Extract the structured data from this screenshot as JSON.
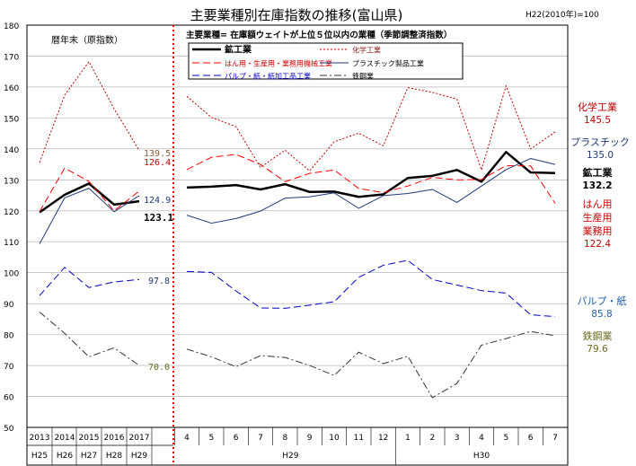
{
  "chart_data": {
    "type": "line",
    "title": "主要業種別在庫指数の推移(富山県)",
    "base_note": "H22(2010年)=100",
    "subtitle": "主要業種= 在庫額ウェイトが上位５位以内の業種（季節調整済指数）",
    "annual_label": "暦年末（原指数）",
    "ylim": [
      50,
      180
    ],
    "yticks": [
      50,
      60,
      70,
      80,
      90,
      100,
      110,
      120,
      130,
      140,
      150,
      160,
      170,
      180
    ],
    "annual_x": [
      "2013",
      "2014",
      "2015",
      "2016",
      "2017"
    ],
    "annual_era": [
      "H25",
      "H26",
      "H27",
      "H28",
      "H29"
    ],
    "monthly_x": [
      "4",
      "5",
      "6",
      "7",
      "8",
      "9",
      "10",
      "11",
      "12",
      "1",
      "2",
      "3",
      "4",
      "5",
      "6",
      "7"
    ],
    "monthly_era": [
      "H29",
      "H30"
    ],
    "series": [
      {
        "name": "鉱工業",
        "color": "#000000",
        "dash": "solid",
        "width": 2.5,
        "annual": [
          119.5,
          125.2,
          128.8,
          122.0,
          123.1
        ],
        "monthly": [
          127.5,
          127.8,
          128.3,
          126.9,
          128.6,
          126.1,
          126.2,
          124.5,
          125.3,
          130.6,
          131.3,
          133.2,
          129.4,
          139.0,
          132.4,
          132.2
        ],
        "label_lines": [
          "鉱工業"
        ],
        "label_value": "132.2",
        "label_color": "#000000",
        "annual_end_label": "123.1"
      },
      {
        "name": "化学工業",
        "color": "#c00000",
        "dash": "dot",
        "width": 1,
        "annual": [
          135.6,
          157.4,
          168.2,
          153.0,
          139.5
        ],
        "monthly": [
          157.0,
          150.2,
          147.2,
          134.0,
          139.6,
          132.9,
          142.3,
          145.1,
          141.0,
          159.8,
          158.3,
          156.1,
          133.2,
          160.4,
          140.0,
          145.5
        ],
        "label_lines": [
          "化学工業"
        ],
        "label_value": "145.5",
        "label_color": "#c00000",
        "annual_end_label": "139.5"
      },
      {
        "name": "はん用・生産用・業務用機械工業",
        "color": "#ff0000",
        "dash": "dash",
        "width": 1,
        "annual": [
          119.7,
          133.8,
          129.5,
          120.0,
          126.4
        ],
        "monthly": [
          133.3,
          137.3,
          138.2,
          135.0,
          129.4,
          132.1,
          133.2,
          127.2,
          125.9,
          128.0,
          130.8,
          130.0,
          130.1,
          134.6,
          134.5,
          122.4
        ],
        "label_lines": [
          "はん用",
          "生産用",
          "業務用"
        ],
        "label_value": "122.4",
        "label_color": "#cc0000",
        "annual_end_label": "126.4"
      },
      {
        "name": "プラスチック製品工業",
        "color": "#1f3a78",
        "dash": "solid",
        "width": 1,
        "annual": [
          109.3,
          124.2,
          127.3,
          119.7,
          124.9
        ],
        "monthly": [
          118.6,
          116.0,
          117.5,
          119.9,
          124.1,
          124.5,
          125.8,
          120.8,
          124.9,
          125.6,
          126.9,
          122.7,
          128.0,
          133.3,
          136.9,
          135.0
        ],
        "label_lines": [
          "プラスチック"
        ],
        "label_value": "135.0",
        "label_color": "#1f3a78",
        "annual_end_label": "124.9"
      },
      {
        "name": "パルプ・紙・紙加工品工業",
        "color": "#0000cc",
        "dash": "dash",
        "width": 1,
        "annual": [
          92.6,
          101.7,
          95.2,
          97.0,
          97.8
        ],
        "monthly": [
          100.4,
          100.1,
          94.1,
          88.6,
          88.5,
          89.5,
          90.6,
          98.5,
          102.4,
          104.0,
          97.8,
          96.0,
          94.2,
          93.4,
          86.4,
          85.8
        ],
        "label_lines": [
          "パルプ・紙"
        ],
        "label_value": "85.8",
        "label_color": "#1f5fa8",
        "annual_end_label": "97.8"
      },
      {
        "name": "鉄鋼業",
        "color": "#333333",
        "dash": "dashdot",
        "width": 1,
        "annual": [
          87.3,
          80.4,
          72.8,
          75.7,
          70.0
        ],
        "monthly": [
          75.3,
          72.8,
          69.6,
          73.2,
          72.6,
          70.0,
          66.8,
          74.3,
          70.6,
          73.0,
          59.6,
          64.2,
          76.6,
          78.7,
          81.0,
          79.6
        ],
        "label_lines": [
          "鉄鋼業"
        ],
        "label_value": "79.6",
        "label_color": "#6b6b1f",
        "annual_end_label": "70.0"
      }
    ]
  }
}
